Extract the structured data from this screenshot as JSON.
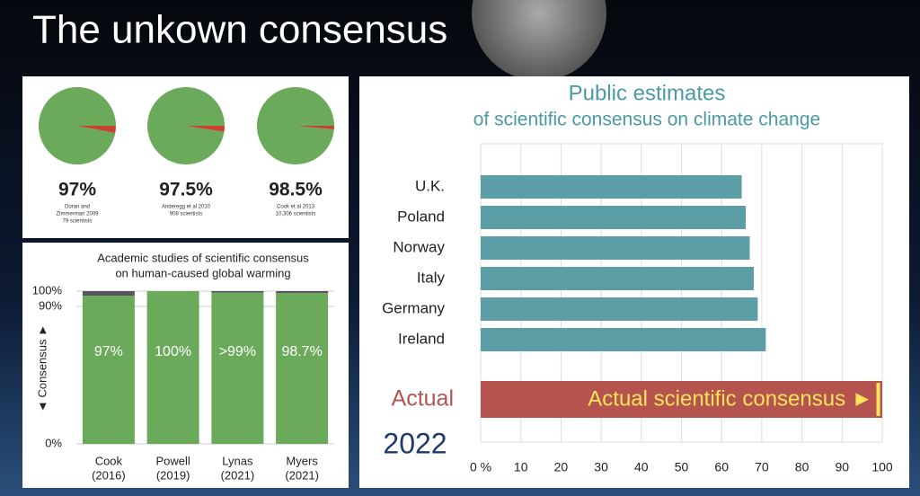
{
  "title": "The unkown consensus",
  "chart_data": [
    {
      "type": "pie",
      "values": [
        97,
        3
      ],
      "colors": [
        "#6aaa5a",
        "#c8402f"
      ],
      "label": "97%",
      "caption": [
        "Doran and",
        "Zimmerman 2009",
        "79 scientists"
      ]
    },
    {
      "type": "pie",
      "values": [
        97.5,
        2.5
      ],
      "colors": [
        "#6aaa5a",
        "#c8402f"
      ],
      "label": "97.5%",
      "caption": [
        "Anderegg et al 2010",
        "908 scientists"
      ]
    },
    {
      "type": "pie",
      "values": [
        98.5,
        1.5
      ],
      "colors": [
        "#6aaa5a",
        "#c8402f"
      ],
      "label": "98.5%",
      "caption": [
        "Cook et al 2013",
        "10,306 scientists"
      ]
    },
    {
      "type": "stacked",
      "title": [
        "Academic studies of scientific consensus",
        "on human-caused global warming"
      ],
      "ylabel": "◄ Consensus ►",
      "categories": [
        [
          "Cook",
          "(2016)"
        ],
        [
          "Powell",
          "(2019)"
        ],
        [
          "Lynas",
          "(2021)"
        ],
        [
          "Myers",
          "(2021)"
        ]
      ],
      "series": [
        {
          "color": "#6aaa5a",
          "values": [
            97,
            100,
            99,
            98.7
          ],
          "value_labels": [
            "97%",
            "100%",
            ">99%",
            "98.7%"
          ]
        },
        {
          "color": "#55555f",
          "values": [
            3,
            0,
            1,
            1.3
          ]
        }
      ],
      "ylim": [
        0,
        100
      ],
      "yticks": [
        {
          "value": 0,
          "label": "0%"
        },
        {
          "value": 90,
          "label": "90%"
        },
        {
          "value": 100,
          "label": "100%"
        }
      ],
      "grid": true
    },
    {
      "type": "hbar",
      "title": "Public estimates",
      "subtitle": "of scientific consensus on climate change",
      "categories": [
        "U.K.",
        "Poland",
        "Norway",
        "Italy",
        "Germany",
        "Ireland"
      ],
      "values": [
        65,
        66,
        67,
        68,
        69,
        71
      ],
      "color": "#5b9ea6",
      "actual": {
        "category": "Actual",
        "value": 99,
        "color": "#b5534f",
        "marker_color": "#ffe45c",
        "annotation": "Actual scientific consensus ►"
      },
      "annotation": "2022",
      "xlim": [
        0,
        100
      ],
      "xticks": [
        {
          "value": 0,
          "label": "0 %"
        },
        10,
        20,
        30,
        40,
        50,
        60,
        70,
        80,
        90,
        100
      ],
      "grid": true
    }
  ]
}
